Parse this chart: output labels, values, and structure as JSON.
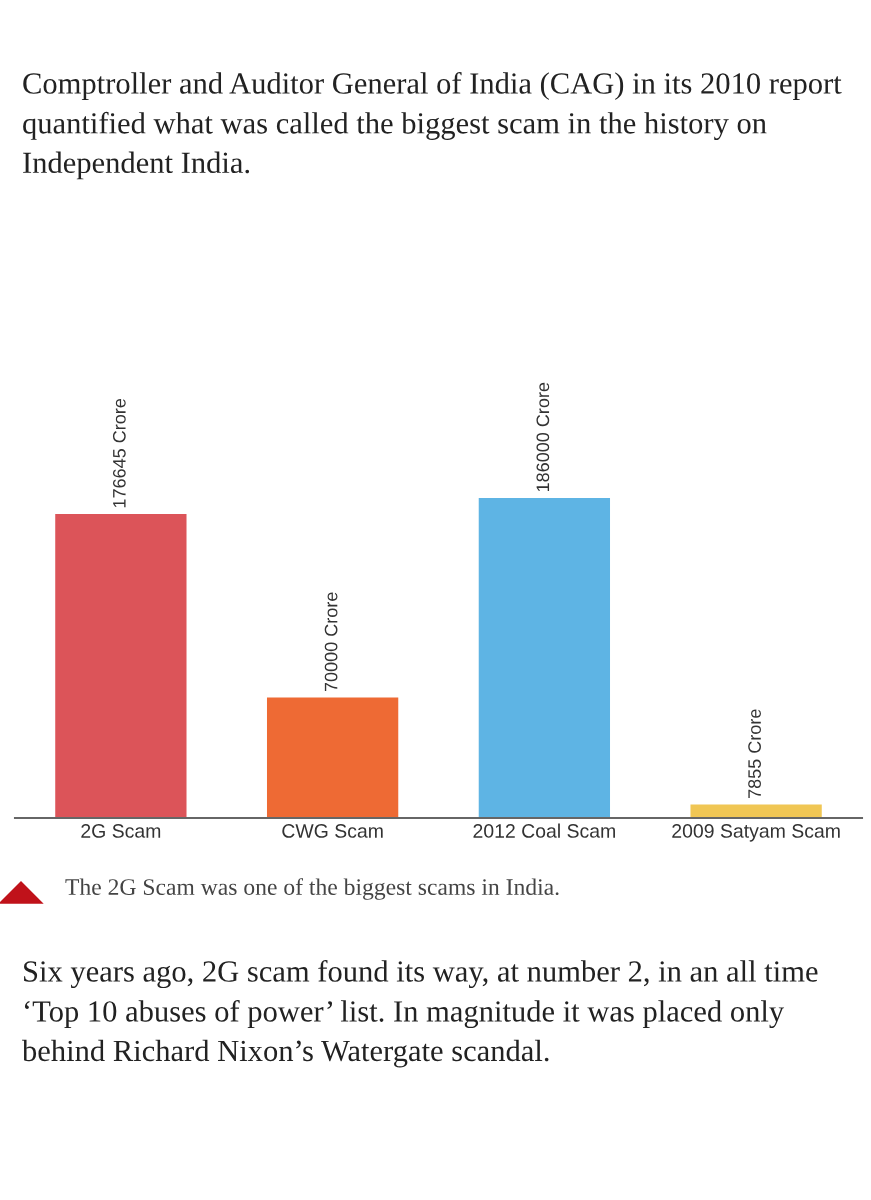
{
  "chart_data": {
    "type": "bar",
    "title": "Comptroller and Auditor General of India (CAG) in its 2010 report quantified what was called the biggest scam in the history on Independent India.",
    "categories": [
      "2G Scam",
      "CWG Scam",
      "2012 Coal Scam",
      "2009 Satyam Scam"
    ],
    "values": [
      176645,
      70000,
      186000,
      7855
    ],
    "colors": [
      "#dc5459",
      "#ee6a34",
      "#5eb4e4",
      "#f0c654"
    ],
    "value_labels": [
      "176645 Crore",
      "70000 Crore",
      "186000 Crore",
      "7855 Crore"
    ],
    "grid": false,
    "legend": false,
    "annotations": [
      "The 2G Scam was one of the biggest scams in India.",
      "Six years ago, 2G scam found its way, at number 2, in an all time ‘Top 10 abuses of power’ list. In magnitude it was placed only behind Richard Nixon’s Watergate scandal."
    ]
  }
}
